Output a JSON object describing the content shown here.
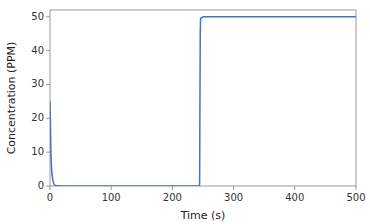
{
  "chart_data": {
    "type": "line",
    "xlabel": "Time (s)",
    "ylabel": "Concentration (PPM)",
    "x": [
      0,
      0.5,
      1,
      1.5,
      2,
      3,
      4,
      5,
      6,
      7,
      8,
      10,
      15,
      20,
      30,
      50,
      100,
      150,
      200,
      240,
      244,
      244.5,
      245,
      245.5,
      246,
      250,
      300,
      400,
      500
    ],
    "values": [
      25,
      20,
      15,
      10,
      7,
      4,
      2.5,
      1.5,
      0.8,
      0.4,
      0.2,
      0.1,
      0.05,
      0.02,
      0.01,
      0.005,
      0.002,
      0.001,
      0.001,
      0.001,
      0.001,
      1,
      25,
      45,
      49.5,
      50,
      50,
      50,
      50
    ],
    "color": "#4472C4",
    "xlim": [
      0,
      500
    ],
    "ylim": [
      0,
      52
    ],
    "xticks": [
      0,
      100,
      200,
      300,
      400,
      500
    ],
    "yticks": [
      0,
      10,
      20,
      30,
      40,
      50
    ],
    "grid": false
  }
}
